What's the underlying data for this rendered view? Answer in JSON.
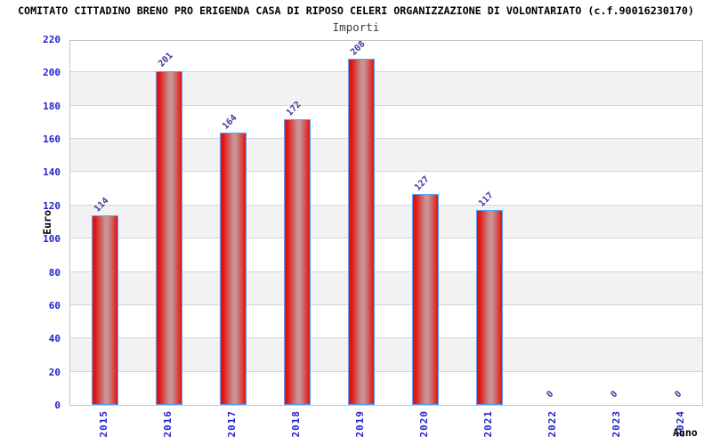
{
  "chart_data": {
    "type": "bar",
    "title": "COMITATO CITTADINO BRENO PRO ERIGENDA CASA DI RIPOSO CELERI ORGANIZZAZIONE DI VOLONTARIATO (c.f.90016230170)",
    "subtitle": "Importi",
    "xlabel": "Anno",
    "ylabel": "Euro",
    "categories": [
      "2015",
      "2016",
      "2017",
      "2018",
      "2019",
      "2020",
      "2021",
      "2022",
      "2023",
      "2024"
    ],
    "values": [
      114,
      201,
      164,
      172,
      208,
      127,
      117,
      0,
      0,
      0
    ],
    "ylim": [
      0,
      220
    ],
    "ytick_step": 20,
    "grid": "horizontal gridlines with alternating shaded bands",
    "legend": "none",
    "colors": {
      "tick_text": "#2222cc",
      "value_label": "#3a3a99",
      "bar_edge_red": "#e51212",
      "bar_center_light": "#c69494",
      "bar_border": "#5aa2f0",
      "band_alt": "#f2f2f2",
      "gridline": "#d6d6d6",
      "plot_border": "#c6c6c6",
      "title_color": "#000000",
      "subtitle_color": "#3c3c3c"
    }
  }
}
